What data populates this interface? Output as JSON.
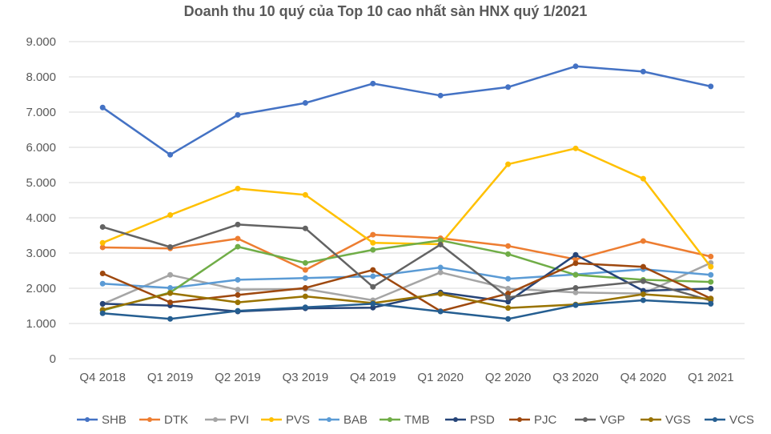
{
  "chart_data": {
    "type": "line",
    "title": "Doanh thu 10 quý của Top 10 cao nhất sàn HNX quý 1/2021",
    "xlabel": "",
    "ylabel": "",
    "ylim": [
      0,
      9000
    ],
    "y_ticks": [
      0,
      1000,
      2000,
      3000,
      4000,
      5000,
      6000,
      7000,
      8000,
      9000
    ],
    "y_tick_labels": [
      "0",
      "1.000",
      "2.000",
      "3.000",
      "4.000",
      "5.000",
      "6.000",
      "7.000",
      "8.000",
      "9.000"
    ],
    "grid": true,
    "legend_position": "bottom",
    "categories": [
      "Q4 2018",
      "Q1 2019",
      "Q2 2019",
      "Q3 2019",
      "Q4 2019",
      "Q1 2020",
      "Q2 2020",
      "Q3 2020",
      "Q4 2020",
      "Q1 2021"
    ],
    "series": [
      {
        "name": "SHB",
        "color": "#4472C4",
        "values": [
          7130,
          5790,
          6920,
          7260,
          7810,
          7470,
          7710,
          8300,
          8150,
          7730
        ]
      },
      {
        "name": "DTK",
        "color": "#ED7D31",
        "values": [
          3160,
          3130,
          3410,
          2520,
          3520,
          3420,
          3200,
          2820,
          3340,
          2900
        ]
      },
      {
        "name": "PVI",
        "color": "#A5A5A5",
        "values": [
          1550,
          2380,
          1960,
          1980,
          1660,
          2450,
          1990,
          1880,
          1850,
          2720
        ]
      },
      {
        "name": "PVS",
        "color": "#FFC000",
        "values": [
          3290,
          4080,
          4830,
          4650,
          3290,
          3250,
          5520,
          5970,
          5110,
          2610
        ]
      },
      {
        "name": "BAB",
        "color": "#5B9BD5",
        "values": [
          2130,
          2010,
          2240,
          2290,
          2340,
          2590,
          2270,
          2390,
          2540,
          2380
        ]
      },
      {
        "name": "TMB",
        "color": "#70AD47",
        "values": [
          1370,
          1880,
          3180,
          2720,
          3090,
          3360,
          2970,
          2380,
          2240,
          2180
        ]
      },
      {
        "name": "PSD",
        "color": "#264478",
        "values": [
          1560,
          1510,
          1340,
          1430,
          1450,
          1880,
          1620,
          2950,
          1930,
          1990
        ]
      },
      {
        "name": "PJC",
        "color": "#9E480E",
        "values": [
          2420,
          1600,
          1810,
          2010,
          2520,
          1350,
          1850,
          2710,
          2610,
          1710
        ]
      },
      {
        "name": "VGP",
        "color": "#636363",
        "values": [
          3740,
          3170,
          3810,
          3700,
          2040,
          3240,
          1740,
          2010,
          2200,
          1650
        ]
      },
      {
        "name": "VGS",
        "color": "#997300",
        "values": [
          1390,
          1860,
          1600,
          1770,
          1580,
          1840,
          1440,
          1540,
          1830,
          1700
        ]
      },
      {
        "name": "VCS",
        "color": "#255E91",
        "values": [
          1290,
          1130,
          1360,
          1460,
          1560,
          1340,
          1130,
          1520,
          1660,
          1560
        ]
      }
    ]
  }
}
